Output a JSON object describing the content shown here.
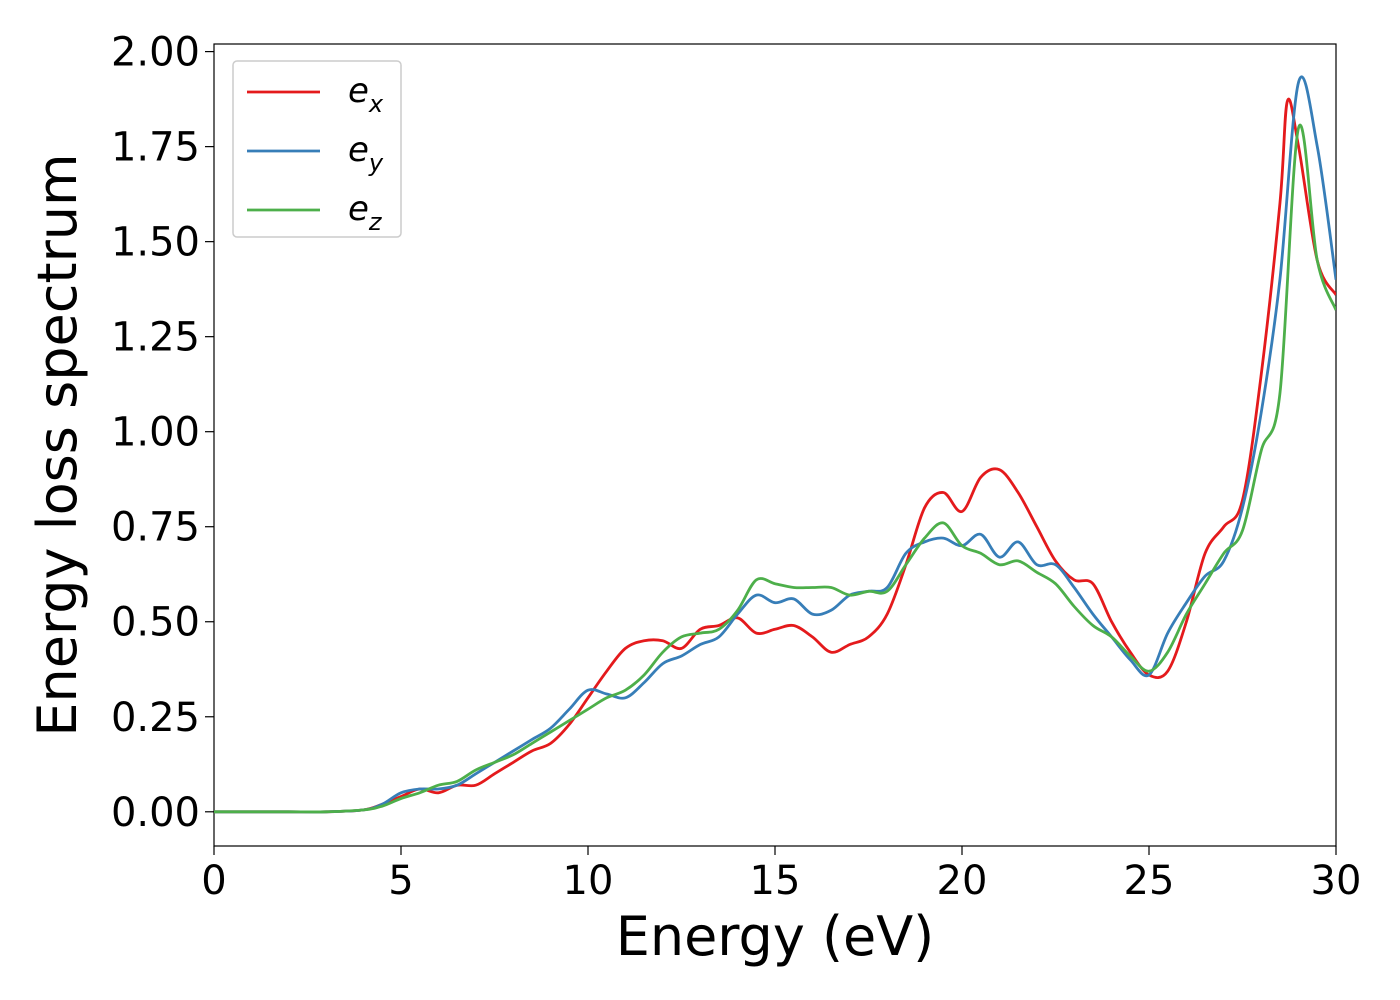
{
  "chart_data": {
    "type": "line",
    "title": "",
    "xlabel": "Energy (eV)",
    "ylabel": "Energy loss spectrum",
    "xlim": [
      0,
      30
    ],
    "ylim": [
      -0.09,
      2.02
    ],
    "xticks": [
      0,
      5,
      10,
      15,
      20,
      25,
      30
    ],
    "xtick_labels": [
      "0",
      "5",
      "10",
      "15",
      "20",
      "25",
      "30"
    ],
    "yticks": [
      0.0,
      0.25,
      0.5,
      0.75,
      1.0,
      1.25,
      1.5,
      1.75,
      2.0
    ],
    "ytick_labels": [
      "0.00",
      "0.25",
      "0.50",
      "0.75",
      "1.00",
      "1.25",
      "1.50",
      "1.75",
      "2.00"
    ],
    "grid": false,
    "legend": "top-left",
    "series": [
      {
        "name": "e",
        "subscript": "x",
        "color": "#e41a1c",
        "x": [
          0,
          1,
          2,
          3,
          4,
          4.5,
          5,
          5.5,
          6,
          6.5,
          7,
          7.5,
          8,
          8.5,
          9,
          9.5,
          10,
          10.5,
          11,
          11.5,
          12,
          12.5,
          13,
          13.5,
          14,
          14.5,
          15,
          15.5,
          16,
          16.5,
          17,
          17.5,
          18,
          18.5,
          19,
          19.5,
          20,
          20.5,
          21,
          21.5,
          22,
          22.5,
          23,
          23.5,
          24,
          24.5,
          25,
          25.5,
          26,
          26.5,
          27,
          27.5,
          28,
          28.5,
          28.7,
          29,
          29.5,
          30
        ],
        "y": [
          0,
          0,
          0,
          0,
          0.005,
          0.02,
          0.04,
          0.06,
          0.05,
          0.07,
          0.07,
          0.1,
          0.13,
          0.16,
          0.18,
          0.23,
          0.3,
          0.37,
          0.43,
          0.45,
          0.45,
          0.43,
          0.48,
          0.49,
          0.51,
          0.47,
          0.48,
          0.49,
          0.46,
          0.42,
          0.44,
          0.46,
          0.52,
          0.65,
          0.8,
          0.84,
          0.79,
          0.88,
          0.9,
          0.84,
          0.75,
          0.66,
          0.61,
          0.6,
          0.5,
          0.42,
          0.36,
          0.37,
          0.5,
          0.68,
          0.75,
          0.82,
          1.15,
          1.6,
          1.87,
          1.75,
          1.45,
          1.36
        ]
      },
      {
        "name": "e",
        "subscript": "y",
        "color": "#377eb8",
        "x": [
          0,
          1,
          2,
          3,
          4,
          4.5,
          5,
          5.5,
          6,
          6.5,
          7,
          7.5,
          8,
          8.5,
          9,
          9.5,
          10,
          10.5,
          11,
          11.5,
          12,
          12.5,
          13,
          13.5,
          14,
          14.5,
          15,
          15.5,
          16,
          16.5,
          17,
          17.5,
          18,
          18.5,
          19,
          19.5,
          20,
          20.5,
          21,
          21.5,
          22,
          22.5,
          23,
          23.5,
          24,
          24.5,
          25,
          25.5,
          26,
          26.5,
          27,
          27.5,
          28,
          28.5,
          29,
          29.5,
          30
        ],
        "y": [
          0,
          0,
          0,
          0,
          0.005,
          0.02,
          0.05,
          0.06,
          0.06,
          0.07,
          0.1,
          0.13,
          0.16,
          0.19,
          0.22,
          0.27,
          0.32,
          0.31,
          0.3,
          0.34,
          0.39,
          0.41,
          0.44,
          0.46,
          0.52,
          0.57,
          0.55,
          0.56,
          0.52,
          0.53,
          0.57,
          0.58,
          0.59,
          0.68,
          0.71,
          0.72,
          0.7,
          0.73,
          0.67,
          0.71,
          0.65,
          0.65,
          0.59,
          0.52,
          0.46,
          0.4,
          0.36,
          0.47,
          0.55,
          0.62,
          0.66,
          0.8,
          1.05,
          1.4,
          1.92,
          1.75,
          1.4
        ]
      },
      {
        "name": "e",
        "subscript": "z",
        "color": "#4daf4a",
        "x": [
          0,
          1,
          2,
          3,
          4,
          4.5,
          5,
          5.5,
          6,
          6.5,
          7,
          7.5,
          8,
          8.5,
          9,
          9.5,
          10,
          10.5,
          11,
          11.5,
          12,
          12.5,
          13,
          13.5,
          14,
          14.5,
          15,
          15.5,
          16,
          16.5,
          17,
          17.5,
          18,
          18.5,
          19,
          19.5,
          20,
          20.5,
          21,
          21.5,
          22,
          22.5,
          23,
          23.5,
          24,
          24.5,
          25,
          25.5,
          26,
          26.5,
          27,
          27.5,
          28,
          28.5,
          29,
          29.5,
          30
        ],
        "y": [
          0,
          0,
          0,
          0,
          0.005,
          0.015,
          0.035,
          0.05,
          0.07,
          0.08,
          0.11,
          0.13,
          0.15,
          0.18,
          0.21,
          0.24,
          0.27,
          0.3,
          0.32,
          0.36,
          0.42,
          0.46,
          0.47,
          0.48,
          0.53,
          0.61,
          0.6,
          0.59,
          0.59,
          0.59,
          0.57,
          0.58,
          0.58,
          0.65,
          0.72,
          0.76,
          0.7,
          0.68,
          0.65,
          0.66,
          0.63,
          0.6,
          0.54,
          0.49,
          0.46,
          0.41,
          0.37,
          0.42,
          0.52,
          0.6,
          0.68,
          0.74,
          0.95,
          1.1,
          1.8,
          1.45,
          1.32
        ]
      }
    ]
  }
}
